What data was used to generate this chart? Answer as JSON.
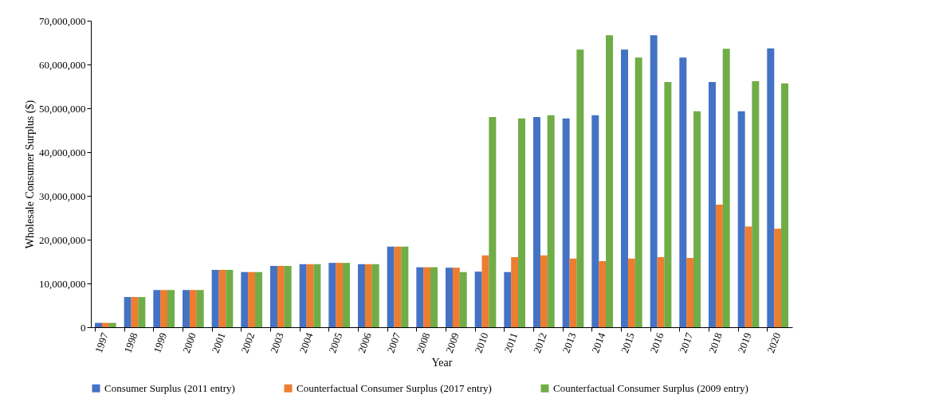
{
  "chart_data": {
    "type": "bar",
    "xlabel": "Year",
    "ylabel": "Wholesale Consumer Surplus ($)",
    "categories": [
      "1997",
      "1998",
      "1999",
      "2000",
      "2001",
      "2002",
      "2003",
      "2004",
      "2005",
      "2006",
      "2007",
      "2008",
      "2009",
      "2010",
      "2011",
      "2012",
      "2013",
      "2014",
      "2015",
      "2016",
      "2017",
      "2018",
      "2019",
      "2020"
    ],
    "series": [
      {
        "name": "Consumer Surplus (2011 entry)",
        "color": "#4472c4",
        "values": [
          1000000,
          6900000,
          8500000,
          8500000,
          13100000,
          12600000,
          14000000,
          14400000,
          14700000,
          14400000,
          18400000,
          13700000,
          13600000,
          12700000,
          12600000,
          48000000,
          47700000,
          48400000,
          63400000,
          66700000,
          61600000,
          56000000,
          49300000,
          63700000
        ]
      },
      {
        "name": "Counterfactual Consumer Surplus (2017 entry)",
        "color": "#ed7d31",
        "values": [
          1000000,
          6900000,
          8500000,
          8500000,
          13100000,
          12600000,
          14000000,
          14400000,
          14700000,
          14400000,
          18400000,
          13700000,
          13600000,
          16400000,
          16000000,
          16400000,
          15700000,
          15100000,
          15700000,
          16000000,
          15800000,
          28000000,
          23000000,
          22500000
        ]
      },
      {
        "name": "Counterfactual Consumer Surplus (2009 entry)",
        "color": "#70ad47",
        "values": [
          1000000,
          6900000,
          8500000,
          8500000,
          13100000,
          12600000,
          14000000,
          14400000,
          14700000,
          14400000,
          18400000,
          13700000,
          12600000,
          48000000,
          47700000,
          48400000,
          63400000,
          66700000,
          61600000,
          56000000,
          49300000,
          63600000,
          56200000,
          55700000
        ]
      }
    ],
    "ylim": [
      0,
      70000000
    ],
    "yticks": [
      0,
      {
        "value": 10000000,
        "label": "10,000,000"
      },
      {
        "value": 20000000,
        "label": "20,000,000"
      },
      {
        "value": 30000000,
        "label": "30,000,000"
      },
      {
        "value": 40000000,
        "label": "40,000,000"
      },
      {
        "value": 50000000,
        "label": "50,000,000"
      },
      {
        "value": 60000000,
        "label": "60,000,000"
      },
      {
        "value": 70000000,
        "label": "70,000,000"
      }
    ],
    "grid": false,
    "legend": "bottom"
  }
}
